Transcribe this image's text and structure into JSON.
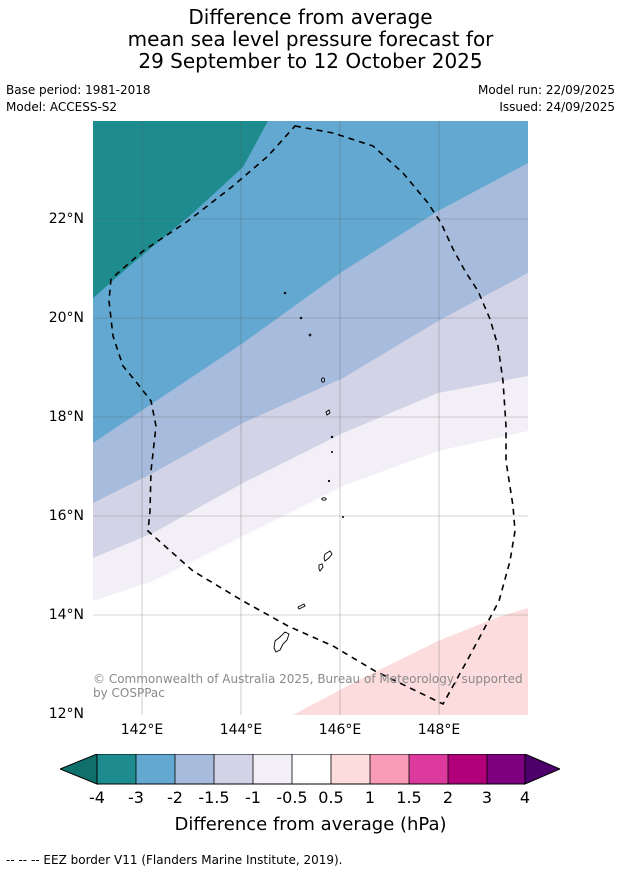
{
  "header": {
    "title_lines": [
      "Difference from average",
      "mean sea level pressure forecast for",
      "29 September to 12 October 2025"
    ],
    "base_period": "Base period: 1981-2018",
    "model": "Model: ACCESS-S2",
    "model_run": "Model run: 22/09/2025",
    "issued": "Issued: 24/09/2025"
  },
  "map": {
    "lat_labels": [
      "22°N",
      "20°N",
      "18°N",
      "16°N",
      "14°N",
      "12°N"
    ],
    "lon_labels": [
      "142°E",
      "144°E",
      "146°E",
      "148°E"
    ],
    "copyright": "© Commonwealth of Australia 2025, Bureau of Meteorology, supported by COSPPac",
    "colors": {
      "band_m2_m3": "#1e8c8e",
      "band_m2": "#62a8d0",
      "band_m1_5": "#a7bcdc",
      "band_m1": "#d3d3e7",
      "band_m0_5": "#f3eff6",
      "band_0": "#ffffff",
      "band_p0_5": "#fcdcdc"
    }
  },
  "colorbar": {
    "title": "Difference from average (hPa)",
    "ticks": [
      "-4",
      "-3",
      "-2",
      "-1.5",
      "-1",
      "-0.5",
      "0.5",
      "1",
      "1.5",
      "2",
      "3",
      "4"
    ],
    "colors": [
      "#0f6f6a",
      "#1e8c8e",
      "#62a8d0",
      "#a7bcdc",
      "#d3d3e7",
      "#f3eff6",
      "#ffffff",
      "#fcdcdc",
      "#f89bb9",
      "#dc3a9d",
      "#b1007a",
      "#7e007e",
      "#4d006b"
    ]
  },
  "footer": {
    "legend": "--  --  -- EEZ border V11 (Flanders Marine Institute, 2019)."
  }
}
